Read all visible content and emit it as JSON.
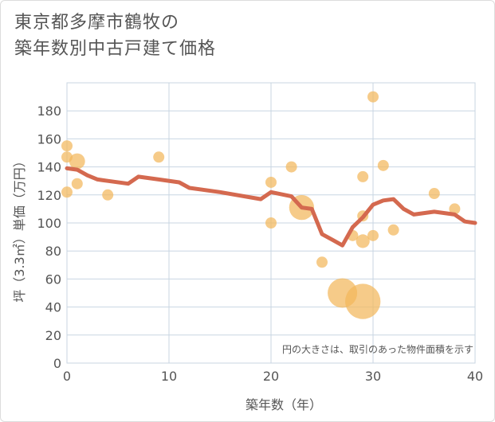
{
  "title_lines": [
    "東京都多摩市鶴牧の",
    "築年数別中古戸建て価格"
  ],
  "chart_data": {
    "type": "scatter",
    "xlabel": "築年数（年）",
    "ylabel": "坪（3.3㎡）単価（万円）",
    "xlim": [
      0,
      40
    ],
    "ylim": [
      0,
      200
    ],
    "x_ticks": [
      0,
      10,
      20,
      30,
      40
    ],
    "y_ticks": [
      0,
      20,
      40,
      60,
      80,
      100,
      120,
      140,
      160,
      180
    ],
    "annotation": "円の大きさは、取引のあった物件面積を示す",
    "colors": {
      "bubble": "#f2b75c",
      "line": "#d4694f",
      "grid": "#c8d6e2"
    },
    "bubbles": [
      {
        "x": 0,
        "y": 155,
        "size": 1
      },
      {
        "x": 0,
        "y": 147,
        "size": 1
      },
      {
        "x": 0,
        "y": 122,
        "size": 1
      },
      {
        "x": 1,
        "y": 144,
        "size": 2
      },
      {
        "x": 1,
        "y": 128,
        "size": 1
      },
      {
        "x": 4,
        "y": 120,
        "size": 1
      },
      {
        "x": 9,
        "y": 147,
        "size": 1
      },
      {
        "x": 20,
        "y": 129,
        "size": 1
      },
      {
        "x": 20,
        "y": 100,
        "size": 1
      },
      {
        "x": 22,
        "y": 140,
        "size": 1
      },
      {
        "x": 23,
        "y": 111,
        "size": 5
      },
      {
        "x": 25,
        "y": 72,
        "size": 1
      },
      {
        "x": 27,
        "y": 50,
        "size": 7
      },
      {
        "x": 28,
        "y": 91,
        "size": 1
      },
      {
        "x": 29,
        "y": 44,
        "size": 10
      },
      {
        "x": 29,
        "y": 87,
        "size": 1.5
      },
      {
        "x": 29,
        "y": 105,
        "size": 1
      },
      {
        "x": 29,
        "y": 133,
        "size": 1
      },
      {
        "x": 30,
        "y": 190,
        "size": 1
      },
      {
        "x": 30,
        "y": 91,
        "size": 1
      },
      {
        "x": 31,
        "y": 141,
        "size": 1
      },
      {
        "x": 32,
        "y": 95,
        "size": 1
      },
      {
        "x": 36,
        "y": 121,
        "size": 1
      },
      {
        "x": 38,
        "y": 110,
        "size": 1
      }
    ],
    "trend_line": [
      {
        "x": 0,
        "y": 139
      },
      {
        "x": 1,
        "y": 138
      },
      {
        "x": 2,
        "y": 134
      },
      {
        "x": 3,
        "y": 131
      },
      {
        "x": 4,
        "y": 130
      },
      {
        "x": 6,
        "y": 128
      },
      {
        "x": 7,
        "y": 133
      },
      {
        "x": 9,
        "y": 131
      },
      {
        "x": 11,
        "y": 129
      },
      {
        "x": 12,
        "y": 125
      },
      {
        "x": 15,
        "y": 122
      },
      {
        "x": 19,
        "y": 117
      },
      {
        "x": 20,
        "y": 122
      },
      {
        "x": 22,
        "y": 119
      },
      {
        "x": 23,
        "y": 111
      },
      {
        "x": 24,
        "y": 110
      },
      {
        "x": 25,
        "y": 92
      },
      {
        "x": 26,
        "y": 88
      },
      {
        "x": 27,
        "y": 84
      },
      {
        "x": 28,
        "y": 97
      },
      {
        "x": 29,
        "y": 104
      },
      {
        "x": 30,
        "y": 113
      },
      {
        "x": 31,
        "y": 116
      },
      {
        "x": 32,
        "y": 117
      },
      {
        "x": 33,
        "y": 110
      },
      {
        "x": 34,
        "y": 106
      },
      {
        "x": 36,
        "y": 108
      },
      {
        "x": 38,
        "y": 106
      },
      {
        "x": 39,
        "y": 101
      },
      {
        "x": 40,
        "y": 100
      }
    ]
  }
}
